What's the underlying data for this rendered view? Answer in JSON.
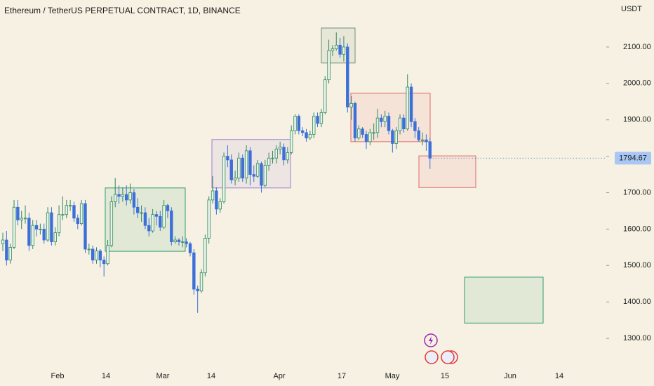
{
  "chart_data": {
    "type": "candlestick",
    "title": "Ethereum / TetherUS PERPETUAL CONTRACT, 1D, BINANCE",
    "currency": "USDT",
    "x_labels": [
      "Feb",
      "14",
      "Mar",
      "14",
      "Apr",
      "17",
      "May",
      "15",
      "Jun",
      "14"
    ],
    "ylim": [
      1227,
      2229
    ],
    "yticks": [
      {
        "value": 1300,
        "label": "1300.00"
      },
      {
        "value": 1400,
        "label": "1400.00"
      },
      {
        "value": 1500,
        "label": "1500.00"
      },
      {
        "value": 1600,
        "label": "1600.00"
      },
      {
        "value": 1700,
        "label": "1700.00"
      },
      {
        "value": 1800,
        "label": "1800.00"
      },
      {
        "value": 1900,
        "label": "1900.00"
      },
      {
        "value": 2000,
        "label": "2000.00"
      },
      {
        "value": 2100,
        "label": "2100.00"
      }
    ],
    "up_color": "#2f8a5e",
    "down_color": "#3d6fd9",
    "open": [
      1560,
      1570,
      1515,
      1550,
      1660,
      1625,
      1630,
      1630,
      1555,
      1610,
      1600,
      1600,
      1570,
      1645,
      1565,
      1590,
      1640,
      1640,
      1665,
      1665,
      1630,
      1615,
      1670,
      1545,
      1545,
      1515,
      1540,
      1515,
      1505,
      1555,
      1675,
      1695,
      1690,
      1695,
      1680,
      1700,
      1660,
      1645,
      1645,
      1610,
      1595,
      1640,
      1635,
      1605,
      1665,
      1650,
      1565,
      1570,
      1565,
      1565,
      1560,
      1535,
      1435,
      1430,
      1480,
      1575,
      1680,
      1705,
      1655,
      1675,
      1800,
      1790,
      1735,
      1740,
      1795,
      1740,
      1815,
      1750,
      1745,
      1780,
      1720,
      1775,
      1795,
      1795,
      1820,
      1825,
      1790,
      1810,
      1870,
      1910,
      1870,
      1865,
      1850,
      1860,
      1910,
      1890,
      1920,
      2010,
      2090,
      2095,
      2105,
      2080,
      2100,
      1935,
      1945,
      1850,
      1875,
      1860,
      1840,
      1865,
      1865,
      1905,
      1895,
      1910,
      1870,
      1835,
      1870,
      1905,
      1875,
      1990,
      1895,
      1870,
      1845,
      1845,
      1840
    ],
    "high": [
      1590,
      1595,
      1560,
      1680,
      1680,
      1650,
      1665,
      1645,
      1625,
      1625,
      1615,
      1615,
      1660,
      1660,
      1605,
      1665,
      1690,
      1680,
      1680,
      1675,
      1640,
      1680,
      1680,
      1560,
      1555,
      1550,
      1545,
      1525,
      1570,
      1690,
      1740,
      1720,
      1715,
      1720,
      1725,
      1710,
      1685,
      1665,
      1660,
      1630,
      1655,
      1650,
      1650,
      1680,
      1670,
      1660,
      1580,
      1575,
      1580,
      1575,
      1565,
      1545,
      1445,
      1490,
      1585,
      1690,
      1745,
      1715,
      1685,
      1810,
      1830,
      1805,
      1760,
      1810,
      1805,
      1830,
      1825,
      1775,
      1790,
      1785,
      1790,
      1810,
      1815,
      1830,
      1840,
      1835,
      1825,
      1885,
      1915,
      1915,
      1880,
      1875,
      1870,
      1920,
      1920,
      1930,
      2020,
      2120,
      2105,
      2140,
      2125,
      2130,
      2110,
      1965,
      1950,
      1885,
      1880,
      1870,
      1875,
      1890,
      1930,
      1915,
      1925,
      1920,
      1875,
      1880,
      1915,
      1915,
      2025,
      2000,
      1905,
      1880,
      1865,
      1860,
      1850
    ],
    "low": [
      1540,
      1500,
      1505,
      1545,
      1610,
      1600,
      1615,
      1540,
      1545,
      1580,
      1585,
      1560,
      1565,
      1555,
      1555,
      1580,
      1625,
      1630,
      1650,
      1620,
      1600,
      1610,
      1535,
      1530,
      1505,
      1505,
      1495,
      1470,
      1500,
      1550,
      1660,
      1670,
      1675,
      1665,
      1670,
      1640,
      1630,
      1620,
      1600,
      1580,
      1590,
      1610,
      1595,
      1600,
      1630,
      1555,
      1560,
      1555,
      1550,
      1550,
      1525,
      1420,
      1370,
      1425,
      1470,
      1560,
      1670,
      1640,
      1645,
      1670,
      1770,
      1725,
      1720,
      1730,
      1730,
      1725,
      1720,
      1730,
      1740,
      1700,
      1715,
      1760,
      1780,
      1780,
      1805,
      1775,
      1780,
      1805,
      1860,
      1860,
      1855,
      1840,
      1845,
      1850,
      1880,
      1880,
      1915,
      2000,
      2075,
      2090,
      2070,
      2060,
      1920,
      1900,
      1840,
      1845,
      1850,
      1820,
      1830,
      1845,
      1850,
      1880,
      1880,
      1860,
      1810,
      1820,
      1860,
      1865,
      1870,
      1880,
      1850,
      1840,
      1830,
      1815,
      1765
    ],
    "close": [
      1570,
      1515,
      1550,
      1660,
      1625,
      1630,
      1630,
      1555,
      1610,
      1600,
      1600,
      1570,
      1645,
      1565,
      1590,
      1640,
      1640,
      1665,
      1665,
      1630,
      1615,
      1670,
      1545,
      1545,
      1515,
      1540,
      1515,
      1505,
      1555,
      1675,
      1695,
      1690,
      1695,
      1680,
      1700,
      1660,
      1645,
      1645,
      1610,
      1595,
      1640,
      1635,
      1605,
      1665,
      1650,
      1565,
      1570,
      1565,
      1565,
      1560,
      1535,
      1435,
      1430,
      1480,
      1575,
      1680,
      1705,
      1655,
      1675,
      1800,
      1790,
      1735,
      1740,
      1795,
      1740,
      1815,
      1750,
      1745,
      1780,
      1720,
      1775,
      1795,
      1795,
      1820,
      1825,
      1790,
      1810,
      1870,
      1910,
      1870,
      1865,
      1850,
      1860,
      1910,
      1890,
      1920,
      2010,
      2090,
      2095,
      2105,
      2080,
      2100,
      1935,
      1945,
      1850,
      1875,
      1860,
      1840,
      1865,
      1865,
      1905,
      1895,
      1910,
      1870,
      1835,
      1870,
      1905,
      1875,
      1990,
      1895,
      1870,
      1845,
      1845,
      1840,
      1794.67
    ],
    "zones": [
      {
        "top": 1713,
        "bottom": 1539,
        "color": "#2e9d6a"
      },
      {
        "top": 1846,
        "bottom": 1713,
        "color": "#9b7fd4"
      },
      {
        "top": 2152,
        "bottom": 2056,
        "color": "#6f8f7a"
      },
      {
        "top": 1973,
        "bottom": 1840,
        "color": "#e06a6a"
      },
      {
        "top": 1801,
        "bottom": 1714,
        "color": "#e06a6a"
      },
      {
        "top": 1468,
        "bottom": 1342,
        "color": "#2e9d6a"
      }
    ]
  }
}
